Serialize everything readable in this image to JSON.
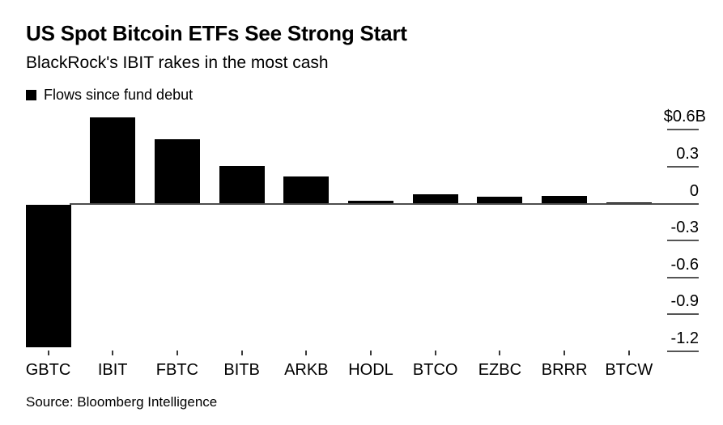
{
  "header": {
    "title": "US Spot Bitcoin ETFs See Strong Start",
    "subtitle": "BlackRock's IBIT rakes in the most cash"
  },
  "legend": {
    "label": "Flows since fund debut",
    "swatch_color": "#000000"
  },
  "source": "Source: Bloomberg Intelligence",
  "colors": {
    "bar": "#000000",
    "axis_line": "#4d4d4d",
    "tick_stub": "#555555",
    "text": "#000000",
    "background": "#ffffff"
  },
  "chart_data": {
    "type": "bar",
    "title": "US Spot Bitcoin ETFs See Strong Start",
    "subtitle": "BlackRock's IBIT rakes in the most cash",
    "series_name": "Flows since fund debut",
    "unit": "$B",
    "categories": [
      "GBTC",
      "IBIT",
      "FBTC",
      "BITB",
      "ARKB",
      "HODL",
      "BTCO",
      "EZBC",
      "BRRR",
      "BTCW"
    ],
    "values": [
      -1.16,
      0.7,
      0.52,
      0.3,
      0.22,
      0.02,
      0.07,
      0.05,
      0.06,
      0.005
    ],
    "xlabel": "",
    "ylabel": "Flows since fund debut ($B)",
    "ylim": [
      -1.35,
      0.78
    ],
    "y_ticks": [
      {
        "value": 0.6,
        "label": "$0.6B"
      },
      {
        "value": 0.3,
        "label": "0.3"
      },
      {
        "value": 0,
        "label": "0"
      },
      {
        "value": -0.3,
        "label": "-0.3"
      },
      {
        "value": -0.6,
        "label": "-0.6"
      },
      {
        "value": -0.9,
        "label": "-0.9"
      },
      {
        "value": -1.2,
        "label": "-1.2"
      }
    ],
    "grid": "right-side tick stubs only",
    "legend_position": "top-left",
    "bar_color": "#000000"
  }
}
